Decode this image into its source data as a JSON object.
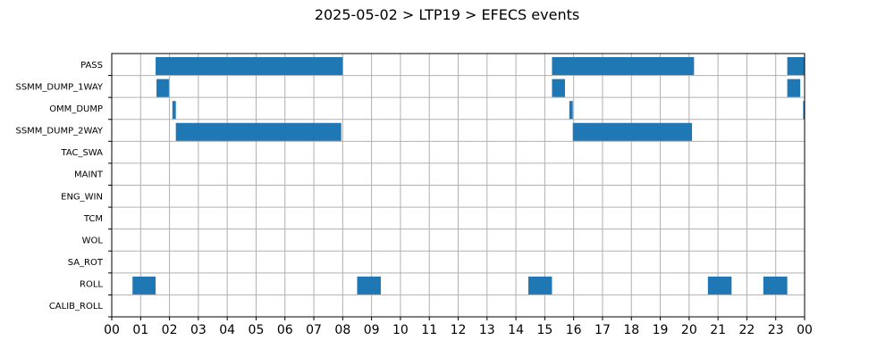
{
  "chart_data": {
    "type": "timeline",
    "title": "2025-05-02 > LTP19 > EFECS events",
    "xlabel": "",
    "ylabel": "",
    "x_unit": "hour",
    "xlim": [
      0,
      24
    ],
    "x_tick_labels": [
      "00",
      "01",
      "02",
      "03",
      "04",
      "05",
      "06",
      "07",
      "08",
      "09",
      "10",
      "11",
      "12",
      "13",
      "14",
      "15",
      "16",
      "17",
      "18",
      "19",
      "20",
      "21",
      "22",
      "23",
      "00"
    ],
    "grid": true,
    "bar_color": "#1f77b4",
    "categories": [
      "PASS",
      "SSMM_DUMP_1WAY",
      "OMM_DUMP",
      "SSMM_DUMP_2WAY",
      "TAC_SWA",
      "MAINT",
      "ENG_WIN",
      "TCM",
      "WOL",
      "SA_ROT",
      "ROLL",
      "CALIB_ROLL"
    ],
    "events": [
      {
        "category": "PASS",
        "start": 1.52,
        "end": 8.0
      },
      {
        "category": "PASS",
        "start": 15.25,
        "end": 20.17
      },
      {
        "category": "PASS",
        "start": 23.4,
        "end": 24.0
      },
      {
        "category": "SSMM_DUMP_1WAY",
        "start": 1.55,
        "end": 1.98
      },
      {
        "category": "SSMM_DUMP_1WAY",
        "start": 15.25,
        "end": 15.7
      },
      {
        "category": "SSMM_DUMP_1WAY",
        "start": 23.4,
        "end": 23.85
      },
      {
        "category": "OMM_DUMP",
        "start": 2.1,
        "end": 2.22
      },
      {
        "category": "OMM_DUMP",
        "start": 15.85,
        "end": 15.97
      },
      {
        "category": "OMM_DUMP",
        "start": 23.95,
        "end": 24.0
      },
      {
        "category": "SSMM_DUMP_2WAY",
        "start": 2.22,
        "end": 7.95
      },
      {
        "category": "SSMM_DUMP_2WAY",
        "start": 15.97,
        "end": 20.1
      },
      {
        "category": "ROLL",
        "start": 0.72,
        "end": 1.52
      },
      {
        "category": "ROLL",
        "start": 8.5,
        "end": 9.32
      },
      {
        "category": "ROLL",
        "start": 14.43,
        "end": 15.25
      },
      {
        "category": "ROLL",
        "start": 20.65,
        "end": 21.47
      },
      {
        "category": "ROLL",
        "start": 22.57,
        "end": 23.4
      }
    ]
  }
}
